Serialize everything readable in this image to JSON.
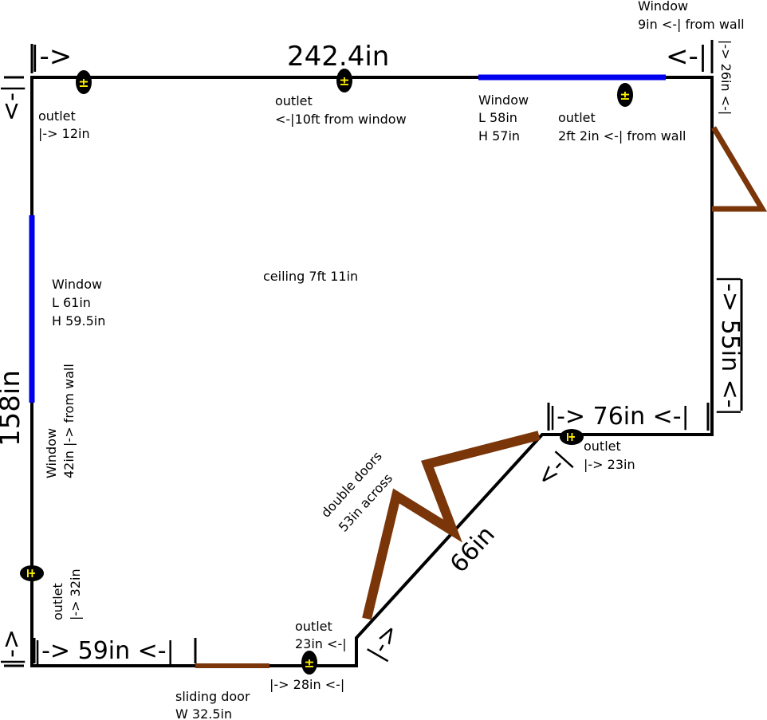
{
  "title": "242.4in",
  "top_left_arrow": "|->",
  "top_right_arrow": "<-|",
  "top_window_offset": [
    "Window",
    "9in <-| from wall"
  ],
  "right_top_dimension": "|-> 26in <-|",
  "left_top_arrow": "<-|",
  "outlet_top_left": [
    "outlet",
    "|-> 12in"
  ],
  "outlet_top_center": [
    "outlet",
    "<-|10ft from window"
  ],
  "window_top": [
    "Window",
    "L 58in",
    "H 57in"
  ],
  "outlet_top_right": [
    "outlet",
    "2ft 2in <-| from wall"
  ],
  "ceiling": "ceiling 7ft 11in",
  "window_left": [
    "Window",
    "L 61in",
    "H 59.5in"
  ],
  "left_dimension": "158in",
  "window_left_offset": [
    "Window",
    "42in |-> from wall"
  ],
  "right_dimension": "|-> 55in <-|",
  "step_dimension": "|-> 76in <-|",
  "outlet_step": [
    "outlet",
    "|-> 23in"
  ],
  "diagonal_arrow_top": "<-|",
  "diagonal_dimension": "66in",
  "double_doors": [
    "double doors",
    "53in across"
  ],
  "outlet_left": [
    "outlet",
    "|-> 32in"
  ],
  "left_bottom_arrow": "|->",
  "bottom_dimension": "|-> 59in <-|",
  "outlet_bottom": [
    "outlet",
    "23in <-|"
  ],
  "diagonal_arrow_bottom": "|->",
  "bottom_small_dimension": "|-> 28in <-|",
  "sliding_door": [
    "sliding door",
    "W 32.5in"
  ]
}
